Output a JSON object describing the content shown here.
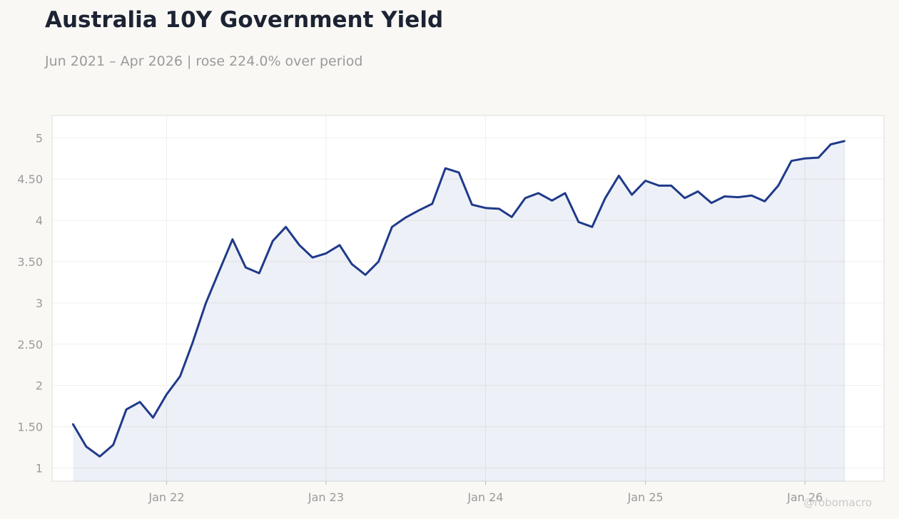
{
  "header": {
    "title": "Australia 10Y Government Yield",
    "subtitle": "Jun 2021 – Apr 2026 | rose 224.0% over period"
  },
  "watermark": "@robomacro",
  "colors": {
    "line": "#1f3a8a",
    "fill": "#1f3a8a",
    "background": "#f9f8f5",
    "plot_bg": "#ffffff"
  },
  "chart_data": {
    "type": "area",
    "title": "Australia 10Y Government Yield",
    "subtitle": "Jun 2021 – Apr 2026 | rose 224.0% over period",
    "xlabel": "",
    "ylabel": "",
    "x_ticks": [
      {
        "label": "Jan 22",
        "date": "2022-01-01"
      },
      {
        "label": "Jan 23",
        "date": "2023-01-01"
      },
      {
        "label": "Jan 24",
        "date": "2024-01-01"
      },
      {
        "label": "Jan 25",
        "date": "2025-01-01"
      },
      {
        "label": "Jan 26",
        "date": "2026-01-01"
      }
    ],
    "y_ticks": [
      {
        "label": "1",
        "value": 1
      },
      {
        "label": "1.50",
        "value": 1.5
      },
      {
        "label": "2",
        "value": 2
      },
      {
        "label": "2.50",
        "value": 2.5
      },
      {
        "label": "3",
        "value": 3
      },
      {
        "label": "3.50",
        "value": 3.5
      },
      {
        "label": "4",
        "value": 4
      },
      {
        "label": "4.50",
        "value": 4.5
      },
      {
        "label": "5",
        "value": 5
      }
    ],
    "xlim": [
      "2021-04-14",
      "2026-07-01"
    ],
    "ylim": [
      0.84,
      5.27
    ],
    "grid": true,
    "series": [
      {
        "x": [
          "2021-06",
          "2021-07",
          "2021-08",
          "2021-09",
          "2021-10",
          "2021-11",
          "2021-12",
          "2022-01",
          "2022-02",
          "2022-03",
          "2022-04",
          "2022-05",
          "2022-06",
          "2022-07",
          "2022-08",
          "2022-09",
          "2022-10",
          "2022-11",
          "2022-12",
          "2023-01",
          "2023-02",
          "2023-03",
          "2023-04",
          "2023-05",
          "2023-06",
          "2023-07",
          "2023-08",
          "2023-09",
          "2023-10",
          "2023-11",
          "2023-12",
          "2024-01",
          "2024-02",
          "2024-03",
          "2024-04",
          "2024-05",
          "2024-06",
          "2024-07",
          "2024-08",
          "2024-09",
          "2024-10",
          "2024-11",
          "2024-12",
          "2025-01",
          "2025-02",
          "2025-03",
          "2025-04",
          "2025-05",
          "2025-06",
          "2025-07",
          "2025-08",
          "2025-09",
          "2025-10",
          "2025-11",
          "2025-12",
          "2026-01",
          "2026-02",
          "2026-03",
          "2026-04"
        ],
        "values": [
          1.53,
          1.26,
          1.14,
          1.28,
          1.71,
          1.8,
          1.61,
          1.89,
          2.11,
          2.51,
          3.0,
          3.38,
          3.77,
          3.43,
          3.36,
          3.75,
          3.92,
          3.7,
          3.55,
          3.6,
          3.7,
          3.47,
          3.34,
          3.5,
          3.92,
          4.03,
          4.12,
          4.2,
          4.63,
          4.58,
          4.19,
          4.15,
          4.14,
          4.04,
          4.27,
          4.33,
          4.24,
          4.33,
          3.98,
          3.92,
          4.27,
          4.54,
          4.31,
          4.48,
          4.42,
          4.42,
          4.27,
          4.35,
          4.21,
          4.29,
          4.28,
          4.3,
          4.23,
          4.42,
          4.72,
          4.75,
          4.76,
          4.92,
          4.96
        ]
      }
    ]
  }
}
